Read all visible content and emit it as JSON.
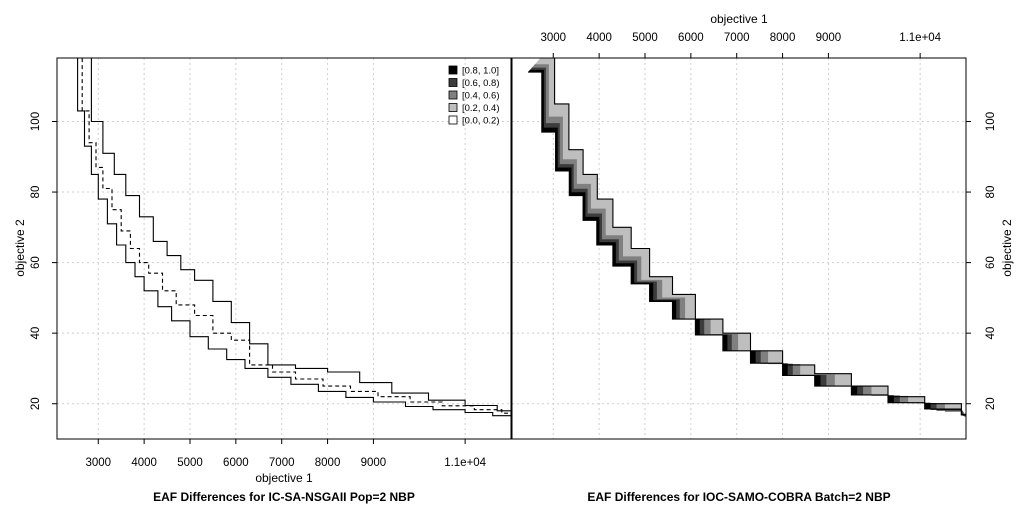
{
  "chart_data": {
    "type": "line",
    "shared": {
      "xlabel": "objective 1",
      "ylabel": "objective 2",
      "xlim": [
        2100,
        12000
      ],
      "ylim": [
        10,
        118
      ],
      "x_ticks": [
        3000,
        4000,
        5000,
        6000,
        7000,
        8000,
        9000,
        11000
      ],
      "x_tick_labels": [
        "3000",
        "4000",
        "5000",
        "6000",
        "7000",
        "8000",
        "9000",
        "1.1e+04"
      ],
      "y_ticks": [
        20,
        40,
        60,
        80,
        100
      ],
      "y_tick_labels": [
        "20",
        "40",
        "60",
        "80",
        "100"
      ],
      "grid": true
    },
    "legend": {
      "position": "top-right",
      "entries": [
        {
          "label": "[0.8, 1.0]",
          "color": "#000000"
        },
        {
          "label": "[0.6, 0.8)",
          "color": "#3c3c3c"
        },
        {
          "label": "[0.4, 0.6)",
          "color": "#808080"
        },
        {
          "label": "[0.2, 0.4)",
          "color": "#bebebe"
        },
        {
          "label": "[0.0, 0.2)",
          "color": "#ffffff"
        }
      ]
    },
    "panels": [
      {
        "title": "EAF Differences for IC-SA-NSGAII Pop=2 NBP",
        "series": [
          {
            "style": "solid",
            "x": [
              2420,
              2550,
              2700,
              2850,
              3000,
              3200,
              3400,
              3600,
              3800,
              4000,
              4300,
              4600,
              5000,
              5400,
              5800,
              6200,
              6700,
              7200,
              7800,
              8400,
              9000,
              9700,
              10300,
              11000,
              11600,
              12000
            ],
            "y": [
              118,
              103,
              93,
              85,
              78,
              71,
              65,
              60,
              56,
              52,
              47.5,
              43.5,
              39,
              35.5,
              32.5,
              30,
              27.5,
              25.5,
              23.5,
              21.8,
              20.5,
              19.2,
              18.3,
              17.5,
              16.6,
              16.2
            ]
          },
          {
            "style": "dashed",
            "x": [
              2500,
              2650,
              2800,
              2950,
              3100,
              3300,
              3500,
              3700,
              3900,
              4100,
              4400,
              4700,
              5100,
              5500,
              5900,
              6300,
              6800,
              7300,
              7900,
              8500,
              9100,
              9800,
              10500,
              11200,
              11800,
              12000
            ],
            "y": [
              118,
              103,
              94,
              87,
              81,
              75,
              69,
              64,
              60,
              57,
              52,
              48,
              45,
              40,
              38,
              31,
              29,
              27,
              25,
              23.5,
              22,
              20.5,
              19.4,
              18.3,
              17.3,
              16.9
            ]
          },
          {
            "style": "solid",
            "x": [
              2600,
              2850,
              3100,
              3350,
              3600,
              3900,
              4200,
              4500,
              4800,
              5100,
              5500,
              5900,
              6300,
              6700,
              7300,
              8000,
              8700,
              9400,
              10200,
              11000,
              11700,
              12000
            ],
            "y": [
              118,
              100,
              91,
              85,
              79,
              73,
              66,
              62,
              58,
              55,
              49,
              43,
              37,
              31,
              30,
              29,
              26,
              23,
              21,
              19.5,
              18,
              17
            ]
          }
        ]
      },
      {
        "title": "EAF Differences for IOC-SAMO-COBRA Batch=2 NBP",
        "bands_low_to_high": [
          "[0.8, 1.0]",
          "[0.6, 0.8)",
          "[0.4, 0.6)",
          "[0.2, 0.4)",
          "[0.0, 0.2)"
        ],
        "series": [
          {
            "style": "solid",
            "x": [
              2450,
              2750,
              3050,
              3350,
              3650,
              3950,
              4300,
              4700,
              5100,
              5600,
              6100,
              6700,
              7300,
              8000,
              8700,
              9500,
              10300,
              11100,
              11900,
              12000
            ],
            "y": [
              114,
              97,
              86,
              79,
              72,
              65,
              59,
              54,
              49,
              44,
              39.5,
              35,
              31.5,
              28,
              25,
              22.5,
              20.3,
              18.5,
              16.8,
              16.5
            ]
          },
          {
            "style": "solid",
            "x": [
              2720,
              3030,
              3340,
              3650,
              3960,
              4300,
              4700,
              5100,
              5600,
              6100,
              6700,
              7300,
              8000,
              8700,
              9500,
              10300,
              11100,
              11900,
              12000
            ],
            "y": [
              118,
              105,
              92,
              85,
              78,
              70,
              64,
              56,
              51,
              44,
              40,
              35,
              31,
              28.5,
              25,
              22,
              20,
              17,
              16
            ]
          }
        ]
      }
    ]
  }
}
